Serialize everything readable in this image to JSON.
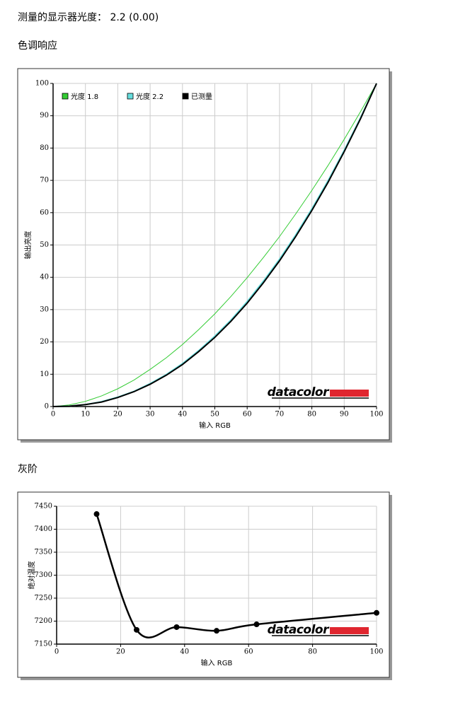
{
  "measured_gamma": "测量的显示器光度： 2.2 (0.00)",
  "chart_data": [
    {
      "type": "line",
      "title": "色调响应",
      "x_label": "输入 RGB",
      "y_label": "输出亮度",
      "watermark": "datacolor",
      "x": [
        0,
        5,
        10,
        15,
        20,
        25,
        30,
        35,
        40,
        45,
        50,
        55,
        60,
        65,
        70,
        75,
        80,
        85,
        90,
        95,
        100
      ],
      "series": [
        {
          "name": "光度 1.8",
          "color": "#33cc33",
          "width": 1,
          "values": [
            0,
            0.5,
            1.6,
            3.3,
            5.5,
            8.2,
            11.5,
            15.1,
            19.2,
            23.8,
            28.7,
            34.1,
            39.9,
            46.1,
            52.6,
            59.6,
            66.9,
            74.6,
            82.7,
            91.2,
            100
          ]
        },
        {
          "name": "光度 2.2",
          "color": "#66dddd",
          "width": 2,
          "values": [
            0,
            0.1,
            0.6,
            1.5,
            2.9,
            4.7,
            7.1,
            9.9,
            13.3,
            17.3,
            21.8,
            26.8,
            32.5,
            38.8,
            45.6,
            53.1,
            61.2,
            69.9,
            79.3,
            89.3,
            100
          ]
        },
        {
          "name": "已测量",
          "color": "#000000",
          "width": 2,
          "values": [
            0,
            0.1,
            0.6,
            1.4,
            2.8,
            4.6,
            6.9,
            9.7,
            13.0,
            17.0,
            21.4,
            26.4,
            32.0,
            38.3,
            45.1,
            52.6,
            60.7,
            69.4,
            78.9,
            89.0,
            100
          ]
        }
      ],
      "xlim": [
        0,
        100
      ],
      "xticks": [
        0,
        10,
        20,
        30,
        40,
        50,
        60,
        70,
        80,
        90,
        100
      ],
      "ylim": [
        0,
        100
      ],
      "yticks": [
        0,
        10,
        20,
        30,
        40,
        50,
        60,
        70,
        80,
        90,
        100
      ],
      "grid": true,
      "legend": "top-left"
    },
    {
      "type": "line",
      "title": "灰阶",
      "x_label": "输入 RGB",
      "y_label": "绝对温度",
      "watermark": "datacolor",
      "x": [
        12.5,
        25,
        37.5,
        50,
        62.5,
        100
      ],
      "values": [
        7433,
        7181,
        7187,
        7179,
        7193,
        7218
      ],
      "color": "#000000",
      "width": 2.5,
      "smooth": true,
      "markers": true,
      "xlim": [
        0,
        100
      ],
      "xticks": [
        0,
        20,
        40,
        60,
        80,
        100
      ],
      "ylim": [
        7150,
        7450
      ],
      "yticks": [
        7150,
        7200,
        7250,
        7300,
        7350,
        7400,
        7450
      ],
      "grid": true
    }
  ]
}
